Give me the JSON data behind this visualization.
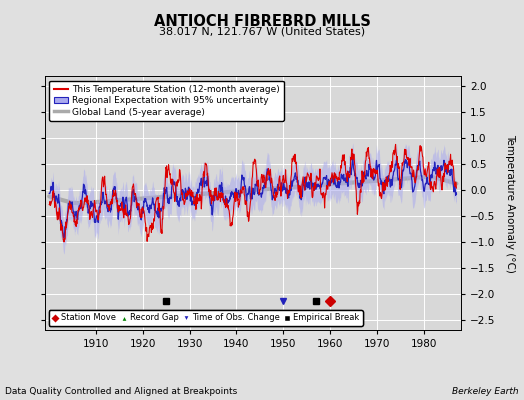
{
  "title": "ANTIOCH FIBREBRD MILLS",
  "subtitle": "38.017 N, 121.767 W (United States)",
  "ylabel": "Temperature Anomaly (°C)",
  "xlabel_note": "Data Quality Controlled and Aligned at Breakpoints",
  "credit": "Berkeley Earth",
  "ylim": [
    -2.7,
    2.2
  ],
  "yticks": [
    -2.5,
    -2.0,
    -1.5,
    -1.0,
    -0.5,
    0.0,
    0.5,
    1.0,
    1.5,
    2.0
  ],
  "year_start": 1900,
  "year_end": 1987,
  "xticks": [
    1910,
    1920,
    1930,
    1940,
    1950,
    1960,
    1970,
    1980
  ],
  "legend_entries": [
    "This Temperature Station (12-month average)",
    "Regional Expectation with 95% uncertainty",
    "Global Land (5-year average)"
  ],
  "background_color": "#E0E0E0",
  "plot_bg_color": "#D8D8D8",
  "grid_color": "#FFFFFF",
  "empirical_breaks": [
    1925,
    1957
  ],
  "station_moves": [
    1960
  ],
  "time_obs_changes": [
    1950
  ],
  "seed": 12345
}
